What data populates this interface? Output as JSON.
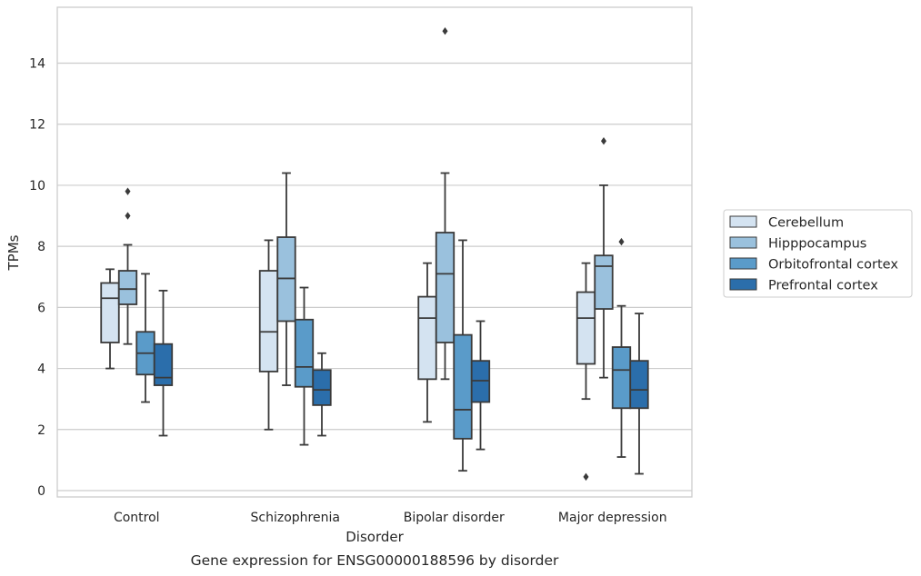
{
  "chart_data": {
    "type": "box",
    "xlabel": "Disorder",
    "ylabel": "TPMs",
    "caption": "Gene expression for ENSG00000188596 by disorder",
    "ylim": [
      -0.25,
      15.9
    ],
    "yticks": [
      0,
      2,
      4,
      6,
      8,
      10,
      12,
      14
    ],
    "grid": "horizontal",
    "legend_position": "right",
    "categories": [
      "Control",
      "Schizophrenia",
      "Bipolar disorder",
      "Major depression"
    ],
    "series": [
      {
        "name": "Cerebellum",
        "color": "#d4e3f1",
        "boxes": [
          {
            "whisker_low": 4.0,
            "q1": 4.85,
            "median": 6.3,
            "q3": 6.8,
            "whisker_high": 7.25,
            "outliers": []
          },
          {
            "whisker_low": 2.0,
            "q1": 3.9,
            "median": 5.2,
            "q3": 7.2,
            "whisker_high": 8.2,
            "outliers": []
          },
          {
            "whisker_low": 2.25,
            "q1": 3.65,
            "median": 5.65,
            "q3": 6.35,
            "whisker_high": 7.45,
            "outliers": []
          },
          {
            "whisker_low": 3.0,
            "q1": 4.15,
            "median": 5.65,
            "q3": 6.5,
            "whisker_high": 7.45,
            "outliers": [
              0.45
            ]
          }
        ]
      },
      {
        "name": "Hipppocampus",
        "color": "#9ac1dd",
        "boxes": [
          {
            "whisker_low": 4.8,
            "q1": 6.1,
            "median": 6.6,
            "q3": 7.2,
            "whisker_high": 8.05,
            "outliers": [
              9.0,
              9.8
            ]
          },
          {
            "whisker_low": 3.45,
            "q1": 5.55,
            "median": 6.95,
            "q3": 8.3,
            "whisker_high": 10.4,
            "outliers": []
          },
          {
            "whisker_low": 3.65,
            "q1": 4.85,
            "median": 7.1,
            "q3": 8.45,
            "whisker_high": 10.4,
            "outliers": [
              15.05
            ]
          },
          {
            "whisker_low": 3.7,
            "q1": 5.95,
            "median": 7.35,
            "q3": 7.7,
            "whisker_high": 10.0,
            "outliers": [
              11.45
            ]
          }
        ]
      },
      {
        "name": "Orbitofrontal cortex",
        "color": "#5a9bc9",
        "boxes": [
          {
            "whisker_low": 2.9,
            "q1": 3.8,
            "median": 4.5,
            "q3": 5.2,
            "whisker_high": 7.1,
            "outliers": []
          },
          {
            "whisker_low": 1.5,
            "q1": 3.4,
            "median": 4.05,
            "q3": 5.6,
            "whisker_high": 6.65,
            "outliers": []
          },
          {
            "whisker_low": 0.65,
            "q1": 1.7,
            "median": 2.65,
            "q3": 5.1,
            "whisker_high": 8.2,
            "outliers": []
          },
          {
            "whisker_low": 1.1,
            "q1": 2.7,
            "median": 3.95,
            "q3": 4.7,
            "whisker_high": 6.05,
            "outliers": [
              8.15
            ]
          }
        ]
      },
      {
        "name": "Prefrontal cortex",
        "color": "#2b6eab",
        "boxes": [
          {
            "whisker_low": 1.8,
            "q1": 3.45,
            "median": 3.7,
            "q3": 4.8,
            "whisker_high": 6.55,
            "outliers": []
          },
          {
            "whisker_low": 1.8,
            "q1": 2.8,
            "median": 3.3,
            "q3": 3.95,
            "whisker_high": 4.5,
            "outliers": []
          },
          {
            "whisker_low": 1.35,
            "q1": 2.9,
            "median": 3.6,
            "q3": 4.25,
            "whisker_high": 5.55,
            "outliers": []
          },
          {
            "whisker_low": 0.55,
            "q1": 2.7,
            "median": 3.3,
            "q3": 4.25,
            "whisker_high": 5.8,
            "outliers": []
          }
        ]
      }
    ]
  }
}
